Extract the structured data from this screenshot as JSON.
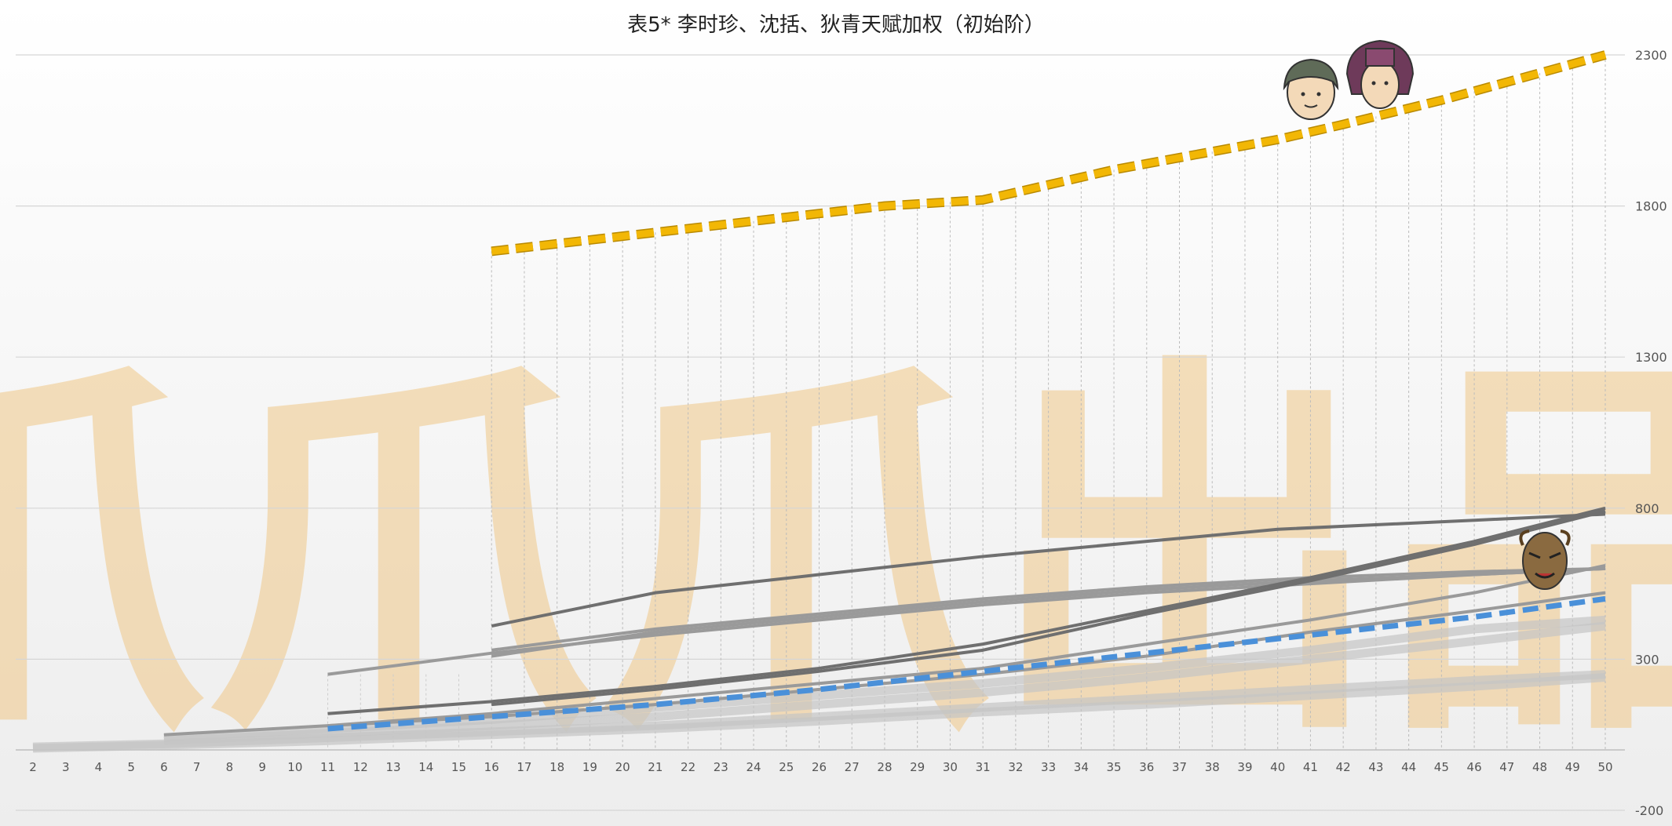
{
  "chart_data": {
    "type": "line",
    "title": "表5* 李时珍、沈括、狄青天赋加权（初始阶）",
    "watermark": "爪爪爪出品",
    "x": [
      2,
      3,
      4,
      5,
      6,
      7,
      8,
      9,
      10,
      11,
      12,
      13,
      14,
      15,
      16,
      17,
      18,
      19,
      20,
      21,
      22,
      23,
      24,
      25,
      26,
      27,
      28,
      29,
      30,
      31,
      32,
      33,
      34,
      35,
      36,
      37,
      38,
      39,
      40,
      41,
      42,
      43,
      44,
      45,
      46,
      47,
      48,
      49,
      50
    ],
    "xlim": [
      2,
      50
    ],
    "ylim": [
      -200,
      2300
    ],
    "yticks": [
      2300,
      1800,
      1300,
      800,
      300,
      -200
    ],
    "grid": "horizontal",
    "y_axis_side": "right",
    "colors": {
      "highlight": "#f2b705",
      "blue": "#4a90d9",
      "dark": "#6f6f6f",
      "mid": "#9a9a9a",
      "light": "#c4c4c4",
      "watermark": "#f0c888"
    },
    "icons": [
      "scholar-portrait-icon",
      "hat-scholar-portrait-icon",
      "general-mask-icon"
    ],
    "series": [
      {
        "style": "highlight",
        "x": [
          16,
          20,
          24,
          28,
          31,
          35,
          40,
          42,
          45,
          50
        ],
        "values": [
          1650,
          1700,
          1750,
          1800,
          1820,
          1920,
          2020,
          2070,
          2150,
          2300
        ]
      },
      {
        "style": "blue",
        "x": [
          11,
          16,
          21,
          26,
          31,
          36,
          41,
          46,
          50
        ],
        "values": [
          70,
          110,
          150,
          200,
          260,
          320,
          380,
          440,
          500
        ]
      },
      {
        "style": "dark",
        "x": [
          16,
          21,
          26,
          31,
          36,
          40,
          46,
          50
        ],
        "values": [
          410,
          520,
          580,
          640,
          690,
          730,
          760,
          780
        ]
      },
      {
        "style": "dark",
        "x": [
          16,
          21,
          26,
          31,
          36,
          41,
          46,
          50
        ],
        "values": [
          150,
          200,
          260,
          330,
          450,
          560,
          680,
          790
        ]
      },
      {
        "style": "dark",
        "x": [
          11,
          16,
          21,
          26,
          31,
          36,
          41,
          46,
          50
        ],
        "values": [
          120,
          160,
          210,
          270,
          350,
          460,
          570,
          690,
          800
        ]
      },
      {
        "style": "mid",
        "x": [
          16,
          21,
          26,
          31,
          36,
          41,
          46,
          50
        ],
        "values": [
          330,
          400,
          450,
          500,
          540,
          570,
          590,
          600
        ]
      },
      {
        "style": "mid",
        "x": [
          16,
          21,
          26,
          31,
          36,
          41,
          46,
          50
        ],
        "values": [
          310,
          390,
          440,
          490,
          530,
          560,
          580,
          600
        ]
      },
      {
        "style": "mid",
        "x": [
          11,
          16,
          21,
          26,
          31,
          36,
          41,
          46,
          50
        ],
        "values": [
          250,
          320,
          380,
          430,
          480,
          520,
          550,
          580,
          600
        ]
      },
      {
        "style": "mid",
        "x": [
          11,
          16,
          21,
          26,
          31,
          36,
          41,
          46,
          50
        ],
        "values": [
          80,
          120,
          170,
          220,
          270,
          350,
          430,
          520,
          610
        ]
      },
      {
        "style": "mid",
        "x": [
          6,
          11,
          16,
          21,
          26,
          31,
          36,
          41,
          46,
          50
        ],
        "values": [
          50,
          80,
          110,
          150,
          200,
          250,
          310,
          390,
          460,
          520
        ]
      },
      {
        "style": "light",
        "x": [
          6,
          11,
          16,
          21,
          26,
          31,
          36,
          41,
          46,
          50
        ],
        "values": [
          40,
          70,
          100,
          140,
          180,
          220,
          270,
          330,
          400,
          430
        ]
      },
      {
        "style": "light",
        "x": [
          6,
          11,
          16,
          21,
          26,
          31,
          36,
          41,
          46,
          50
        ],
        "values": [
          30,
          55,
          80,
          110,
          150,
          190,
          240,
          300,
          360,
          410
        ]
      },
      {
        "style": "light",
        "x": [
          2,
          6,
          11,
          16,
          21,
          26,
          31,
          36,
          41,
          46,
          50
        ],
        "values": [
          10,
          20,
          40,
          60,
          80,
          110,
          140,
          170,
          200,
          230,
          250
        ]
      },
      {
        "style": "light",
        "x": [
          2,
          6,
          11,
          16,
          21,
          26,
          31,
          36,
          41,
          46,
          50
        ],
        "values": [
          5,
          15,
          30,
          50,
          70,
          95,
          125,
          150,
          180,
          210,
          240
        ]
      }
    ]
  }
}
